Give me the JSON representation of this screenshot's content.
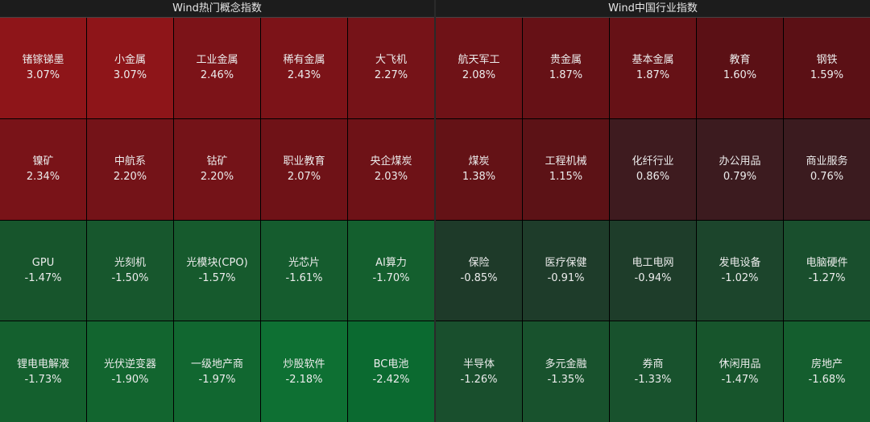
{
  "panels": [
    {
      "title": "Wind热门概念指数",
      "cells": [
        {
          "name": "锗镓锑墨",
          "change": "3.07%",
          "color": "#8e1519"
        },
        {
          "name": "小金属",
          "change": "3.07%",
          "color": "#8e1519"
        },
        {
          "name": "工业金属",
          "change": "2.46%",
          "color": "#7c1318"
        },
        {
          "name": "稀有金属",
          "change": "2.43%",
          "color": "#7c1318"
        },
        {
          "name": "大飞机",
          "change": "2.27%",
          "color": "#761318"
        },
        {
          "name": "镍矿",
          "change": "2.34%",
          "color": "#791318"
        },
        {
          "name": "中航系",
          "change": "2.20%",
          "color": "#741318"
        },
        {
          "name": "钴矿",
          "change": "2.20%",
          "color": "#741318"
        },
        {
          "name": "职业教育",
          "change": "2.07%",
          "color": "#6f1217"
        },
        {
          "name": "央企煤炭",
          "change": "2.03%",
          "color": "#6e1217"
        },
        {
          "name": "GPU",
          "change": "-1.47%",
          "color": "#17552c"
        },
        {
          "name": "光刻机",
          "change": "-1.50%",
          "color": "#17572d"
        },
        {
          "name": "光模块(CPO)",
          "change": "-1.57%",
          "color": "#165a2d"
        },
        {
          "name": "光芯片",
          "change": "-1.61%",
          "color": "#155c2e"
        },
        {
          "name": "AI算力",
          "change": "-1.70%",
          "color": "#145f2e"
        },
        {
          "name": "锂电电解液",
          "change": "-1.73%",
          "color": "#14602e"
        },
        {
          "name": "光伏逆变器",
          "change": "-1.90%",
          "color": "#12652f"
        },
        {
          "name": "一级地产商",
          "change": "-1.97%",
          "color": "#116730"
        },
        {
          "name": "炒股软件",
          "change": "-2.18%",
          "color": "#0e7033"
        },
        {
          "name": "BC电池",
          "change": "-2.42%",
          "color": "#0b6a30"
        }
      ]
    },
    {
      "title": "Wind中国行业指数",
      "cells": [
        {
          "name": "航天军工",
          "change": "2.08%",
          "color": "#6f1217"
        },
        {
          "name": "贵金属",
          "change": "1.87%",
          "color": "#661116"
        },
        {
          "name": "基本金属",
          "change": "1.87%",
          "color": "#661116"
        },
        {
          "name": "教育",
          "change": "1.60%",
          "color": "#5b1015"
        },
        {
          "name": "钢铁",
          "change": "1.59%",
          "color": "#5b1015"
        },
        {
          "name": "煤炭",
          "change": "1.38%",
          "color": "#641216"
        },
        {
          "name": "工程机械",
          "change": "1.15%",
          "color": "#5c1216"
        },
        {
          "name": "化纤行业",
          "change": "0.86%",
          "color": "#3e1b1f"
        },
        {
          "name": "办公用品",
          "change": "0.79%",
          "color": "#3c1b1f"
        },
        {
          "name": "商业服务",
          "change": "0.76%",
          "color": "#3b1b1f"
        },
        {
          "name": "保险",
          "change": "-0.85%",
          "color": "#1e3a29"
        },
        {
          "name": "医疗保健",
          "change": "-0.91%",
          "color": "#1e3c2a"
        },
        {
          "name": "电工电网",
          "change": "-0.94%",
          "color": "#1e3d2a"
        },
        {
          "name": "发电设备",
          "change": "-1.02%",
          "color": "#1c452c"
        },
        {
          "name": "电脑硬件",
          "change": "-1.27%",
          "color": "#194f2d"
        },
        {
          "name": "半导体",
          "change": "-1.26%",
          "color": "#194f2d"
        },
        {
          "name": "多元金融",
          "change": "-1.35%",
          "color": "#18522d"
        },
        {
          "name": "券商",
          "change": "-1.33%",
          "color": "#18522d"
        },
        {
          "name": "休闲用品",
          "change": "-1.47%",
          "color": "#17552c"
        },
        {
          "name": "房地产",
          "change": "-1.68%",
          "color": "#145e2e"
        }
      ]
    }
  ]
}
